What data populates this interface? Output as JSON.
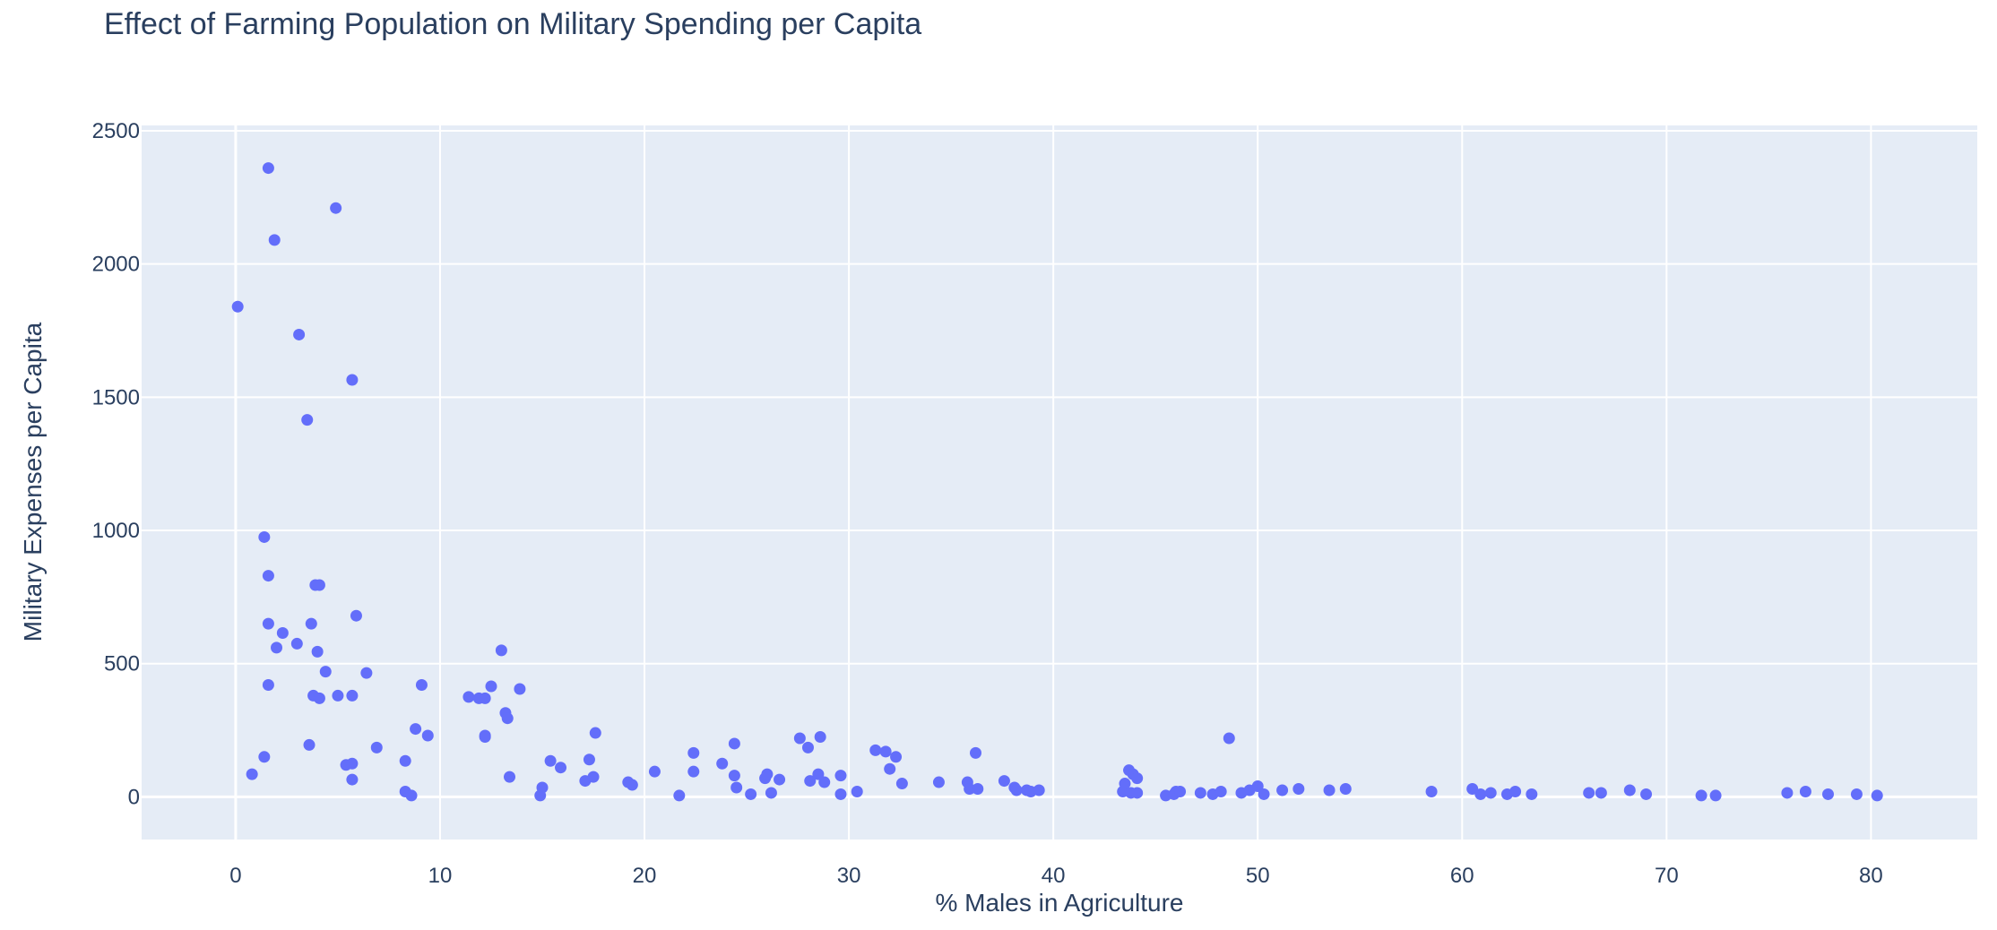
{
  "chart_data": {
    "type": "scatter",
    "title": "Effect of Farming Population on Military Spending per Capita",
    "xlabel": "% Males in Agriculture",
    "ylabel": "Military Expenses per Capita",
    "xlim": [
      -4.6,
      85.2
    ],
    "ylim": [
      -160,
      2520
    ],
    "xticks": [
      0,
      10,
      20,
      30,
      40,
      50,
      60,
      70,
      80
    ],
    "yticks": [
      0,
      500,
      1000,
      1500,
      2000,
      2500
    ],
    "grid": true,
    "legend": "none",
    "colors": {
      "marker": "#636efa",
      "plot_bg": "#e5ecf6",
      "grid": "#ffffff",
      "text": "#2a3f5f"
    },
    "points": [
      [
        0.1,
        1840
      ],
      [
        1.6,
        2360
      ],
      [
        1.9,
        2090
      ],
      [
        3.1,
        1735
      ],
      [
        4.9,
        2210
      ],
      [
        5.7,
        1565
      ],
      [
        3.5,
        1415
      ],
      [
        1.4,
        975
      ],
      [
        1.6,
        830
      ],
      [
        3.9,
        795
      ],
      [
        4.1,
        795
      ],
      [
        1.6,
        650
      ],
      [
        3.7,
        650
      ],
      [
        2.3,
        615
      ],
      [
        5.9,
        680
      ],
      [
        2.0,
        560
      ],
      [
        3.0,
        575
      ],
      [
        4.0,
        545
      ],
      [
        4.4,
        470
      ],
      [
        6.4,
        465
      ],
      [
        1.6,
        420
      ],
      [
        3.8,
        380
      ],
      [
        4.1,
        370
      ],
      [
        5.0,
        380
      ],
      [
        5.7,
        380
      ],
      [
        1.4,
        150
      ],
      [
        0.8,
        85
      ],
      [
        3.6,
        195
      ],
      [
        5.4,
        120
      ],
      [
        5.7,
        125
      ],
      [
        5.7,
        65
      ],
      [
        6.9,
        185
      ],
      [
        8.3,
        135
      ],
      [
        8.3,
        20
      ],
      [
        8.6,
        5
      ],
      [
        8.8,
        255
      ],
      [
        9.1,
        420
      ],
      [
        9.4,
        230
      ],
      [
        11.4,
        375
      ],
      [
        11.9,
        370
      ],
      [
        12.2,
        370
      ],
      [
        12.2,
        230
      ],
      [
        12.2,
        225
      ],
      [
        12.5,
        415
      ],
      [
        13.0,
        550
      ],
      [
        13.2,
        315
      ],
      [
        13.3,
        295
      ],
      [
        13.9,
        405
      ],
      [
        13.4,
        75
      ],
      [
        14.9,
        5
      ],
      [
        15.0,
        35
      ],
      [
        15.4,
        135
      ],
      [
        15.9,
        110
      ],
      [
        17.1,
        60
      ],
      [
        17.3,
        140
      ],
      [
        17.5,
        75
      ],
      [
        17.6,
        240
      ],
      [
        19.2,
        55
      ],
      [
        19.4,
        45
      ],
      [
        20.5,
        95
      ],
      [
        21.7,
        5
      ],
      [
        22.4,
        165
      ],
      [
        22.4,
        95
      ],
      [
        23.8,
        125
      ],
      [
        24.4,
        200
      ],
      [
        24.4,
        80
      ],
      [
        24.5,
        35
      ],
      [
        25.2,
        10
      ],
      [
        25.9,
        70
      ],
      [
        26.0,
        85
      ],
      [
        26.2,
        15
      ],
      [
        26.6,
        65
      ],
      [
        27.6,
        220
      ],
      [
        28.0,
        185
      ],
      [
        28.1,
        60
      ],
      [
        28.6,
        225
      ],
      [
        28.8,
        55
      ],
      [
        28.5,
        85
      ],
      [
        29.6,
        10
      ],
      [
        29.6,
        80
      ],
      [
        30.4,
        20
      ],
      [
        31.3,
        175
      ],
      [
        31.8,
        170
      ],
      [
        32.0,
        105
      ],
      [
        32.3,
        150
      ],
      [
        32.6,
        50
      ],
      [
        34.4,
        55
      ],
      [
        35.8,
        55
      ],
      [
        35.9,
        30
      ],
      [
        36.2,
        165
      ],
      [
        36.3,
        30
      ],
      [
        37.6,
        60
      ],
      [
        38.1,
        35
      ],
      [
        38.2,
        25
      ],
      [
        38.7,
        25
      ],
      [
        38.9,
        20
      ],
      [
        39.3,
        25
      ],
      [
        43.4,
        20
      ],
      [
        43.5,
        50
      ],
      [
        43.7,
        100
      ],
      [
        43.9,
        85
      ],
      [
        44.1,
        70
      ],
      [
        43.8,
        15
      ],
      [
        44.1,
        15
      ],
      [
        45.5,
        5
      ],
      [
        45.9,
        10
      ],
      [
        46.0,
        20
      ],
      [
        46.2,
        20
      ],
      [
        47.2,
        15
      ],
      [
        47.8,
        10
      ],
      [
        48.2,
        20
      ],
      [
        48.6,
        220
      ],
      [
        49.2,
        15
      ],
      [
        49.6,
        25
      ],
      [
        50.0,
        40
      ],
      [
        50.3,
        10
      ],
      [
        51.2,
        25
      ],
      [
        52.0,
        30
      ],
      [
        53.5,
        25
      ],
      [
        54.3,
        30
      ],
      [
        58.5,
        20
      ],
      [
        60.5,
        30
      ],
      [
        60.9,
        10
      ],
      [
        61.4,
        15
      ],
      [
        62.2,
        10
      ],
      [
        62.6,
        20
      ],
      [
        63.4,
        10
      ],
      [
        66.2,
        15
      ],
      [
        66.8,
        15
      ],
      [
        68.2,
        25
      ],
      [
        69.0,
        10
      ],
      [
        71.7,
        5
      ],
      [
        72.4,
        5
      ],
      [
        75.9,
        15
      ],
      [
        76.8,
        20
      ],
      [
        77.9,
        10
      ],
      [
        79.3,
        10
      ],
      [
        80.3,
        5
      ]
    ]
  }
}
